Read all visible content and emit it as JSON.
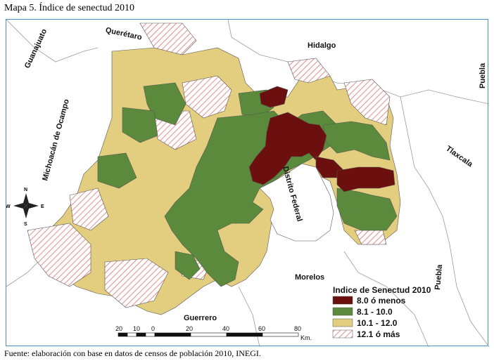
{
  "title": "Mapa 5. Índice de senectud 2010",
  "source": {
    "prefix": "Fuente: elaboración con base en datos de censos de población 2010,",
    "org": "INEGI",
    "suffix": "."
  },
  "map": {
    "state_labels": [
      {
        "name": "Querétaro"
      },
      {
        "name": "Hidalgo"
      },
      {
        "name": "Guanajuato"
      },
      {
        "name": "Michoacán de Ocampo"
      },
      {
        "name": "Puebla"
      },
      {
        "name": "Tlaxcala"
      },
      {
        "name": "Distrito Federal"
      },
      {
        "name": "Morelos"
      },
      {
        "name": "Puebla"
      },
      {
        "name": "Guerrero"
      }
    ],
    "compass": {
      "n": "N",
      "s": "S",
      "e": "E",
      "w": "W"
    }
  },
  "legend": {
    "title": "Indice de Senectud 2010",
    "items": [
      {
        "label": "8.0 ó menos",
        "color": "#6b0f0f",
        "pattern": false
      },
      {
        "label": "8.1 - 10.0",
        "color": "#5b8a3c",
        "pattern": false
      },
      {
        "label": "10.1 - 12.0",
        "color": "#e3cd7e",
        "pattern": false
      },
      {
        "label": "12.1 ó más",
        "color": "#e06f6f",
        "pattern": true
      }
    ]
  },
  "scale": {
    "ticks": [
      "20",
      "10",
      "0",
      "20",
      "40",
      "60",
      "80"
    ],
    "unit": "Km."
  }
}
